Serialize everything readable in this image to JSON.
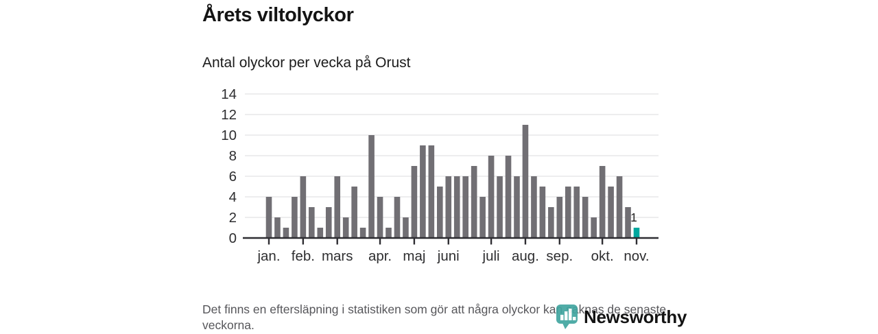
{
  "header": {
    "title": "Årets viltolyckor",
    "subtitle": "Antal olyckor per vecka på Orust"
  },
  "chart_data": {
    "type": "bar",
    "title": "Årets viltolyckor",
    "subtitle": "Antal olyckor per vecka på Orust",
    "ylabel": "",
    "xlabel": "",
    "ylim": [
      0,
      14
    ],
    "yticks": [
      0,
      2,
      4,
      6,
      8,
      10,
      12,
      14
    ],
    "grid": true,
    "categories_note": "one bar per week, January through early November",
    "values": [
      4,
      2,
      1,
      4,
      6,
      3,
      1,
      3,
      6,
      2,
      5,
      1,
      10,
      4,
      1,
      4,
      2,
      7,
      9,
      9,
      5,
      6,
      6,
      6,
      7,
      4,
      8,
      6,
      8,
      6,
      11,
      6,
      5,
      3,
      4,
      5,
      5,
      4,
      2,
      7,
      5,
      6,
      3,
      1
    ],
    "month_ticks": [
      {
        "label": "jan.",
        "week_index": 0
      },
      {
        "label": "feb.",
        "week_index": 4
      },
      {
        "label": "mars",
        "week_index": 8
      },
      {
        "label": "apr.",
        "week_index": 13
      },
      {
        "label": "maj",
        "week_index": 17
      },
      {
        "label": "juni",
        "week_index": 21
      },
      {
        "label": "juli",
        "week_index": 26
      },
      {
        "label": "aug.",
        "week_index": 30
      },
      {
        "label": "sep.",
        "week_index": 34
      },
      {
        "label": "okt.",
        "week_index": 39
      },
      {
        "label": "nov.",
        "week_index": 43
      }
    ],
    "highlight_last": true,
    "last_value_label": "1",
    "colors": {
      "bar": "#716f74",
      "highlight": "#00a79e",
      "axis": "#2e2d32",
      "grid": "#e7e7e8",
      "tick_label": "#2e2e30",
      "value_label": "#222222"
    }
  },
  "footer": {
    "note": "Det finns en eftersläpning i statistiken som gör att några olyckor kan saknas de senaste veckorna."
  },
  "logo": {
    "name": "Newsworthy",
    "color": "#42a5a0"
  }
}
